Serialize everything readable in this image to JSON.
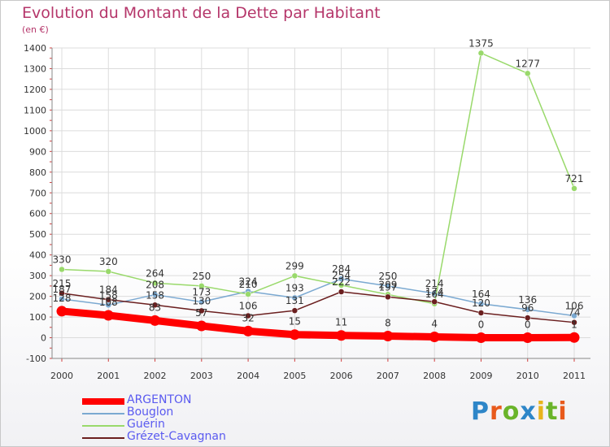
{
  "header": {
    "title": "Evolution du Montant de la Dette par Habitant",
    "unit": "(en €)"
  },
  "logo": {
    "text": "Proxiti",
    "letters": [
      {
        "ch": "P",
        "color": "#2e86c8"
      },
      {
        "ch": "r",
        "color": "#e85a1c"
      },
      {
        "ch": "o",
        "color": "#6ab42a"
      },
      {
        "ch": "x",
        "color": "#2e86c8"
      },
      {
        "ch": "i",
        "color": "#e8b41c"
      },
      {
        "ch": "t",
        "color": "#6ab42a"
      },
      {
        "ch": "i",
        "color": "#e85a1c"
      }
    ]
  },
  "chart_data": {
    "type": "line",
    "title": "Evolution du Montant de la Dette par Habitant",
    "ylabel": "(en €)",
    "xlabel": "",
    "categories": [
      "2000",
      "2001",
      "2002",
      "2003",
      "2004",
      "2005",
      "2006",
      "2007",
      "2008",
      "2009",
      "2010",
      "2011"
    ],
    "ylim": [
      -100,
      1400
    ],
    "yticks": [
      -100,
      0,
      100,
      200,
      300,
      400,
      500,
      600,
      700,
      800,
      900,
      1000,
      1100,
      1200,
      1300,
      1400
    ],
    "grid": true,
    "legend_position": "bottom-left",
    "series": [
      {
        "name": "ARGENTON",
        "color": "#ff0000",
        "width": 9,
        "values": [
          128,
          108,
          83,
          57,
          32,
          15,
          11,
          8,
          4,
          0,
          0,
          1
        ],
        "labels": [
          "128",
          "108",
          "83",
          "57",
          "32",
          "15",
          "11",
          "8",
          "4",
          "0",
          "0",
          "1"
        ]
      },
      {
        "name": "Bouglon",
        "color": "#7ba9d1",
        "width": 1.5,
        "values": [
          187,
          158,
          208,
          173,
          224,
          193,
          284,
          250,
          214,
          164,
          136,
          106
        ],
        "labels": [
          "187",
          "158",
          "208",
          "173",
          "224",
          "193",
          "284",
          "250",
          "214",
          "164",
          "136",
          "106"
        ]
      },
      {
        "name": "Guérin",
        "color": "#99d96b",
        "width": 1.5,
        "values": [
          330,
          320,
          264,
          250,
          210,
          299,
          254,
          209,
          164,
          1375,
          1277,
          721
        ],
        "labels": [
          "330",
          "320",
          "264",
          "250",
          "210",
          "299",
          "254",
          "209",
          "164",
          "1375",
          "1277",
          "721"
        ]
      },
      {
        "name": "Grézet-Cavagnan",
        "color": "#6b1f1f",
        "width": 1.5,
        "values": [
          215,
          184,
          158,
          130,
          106,
          131,
          222,
          197,
          174,
          120,
          96,
          74
        ],
        "labels": [
          "215",
          "184",
          "158",
          "130",
          "106",
          "131",
          "222",
          "197",
          "174",
          "120",
          "96",
          "74"
        ]
      }
    ]
  }
}
